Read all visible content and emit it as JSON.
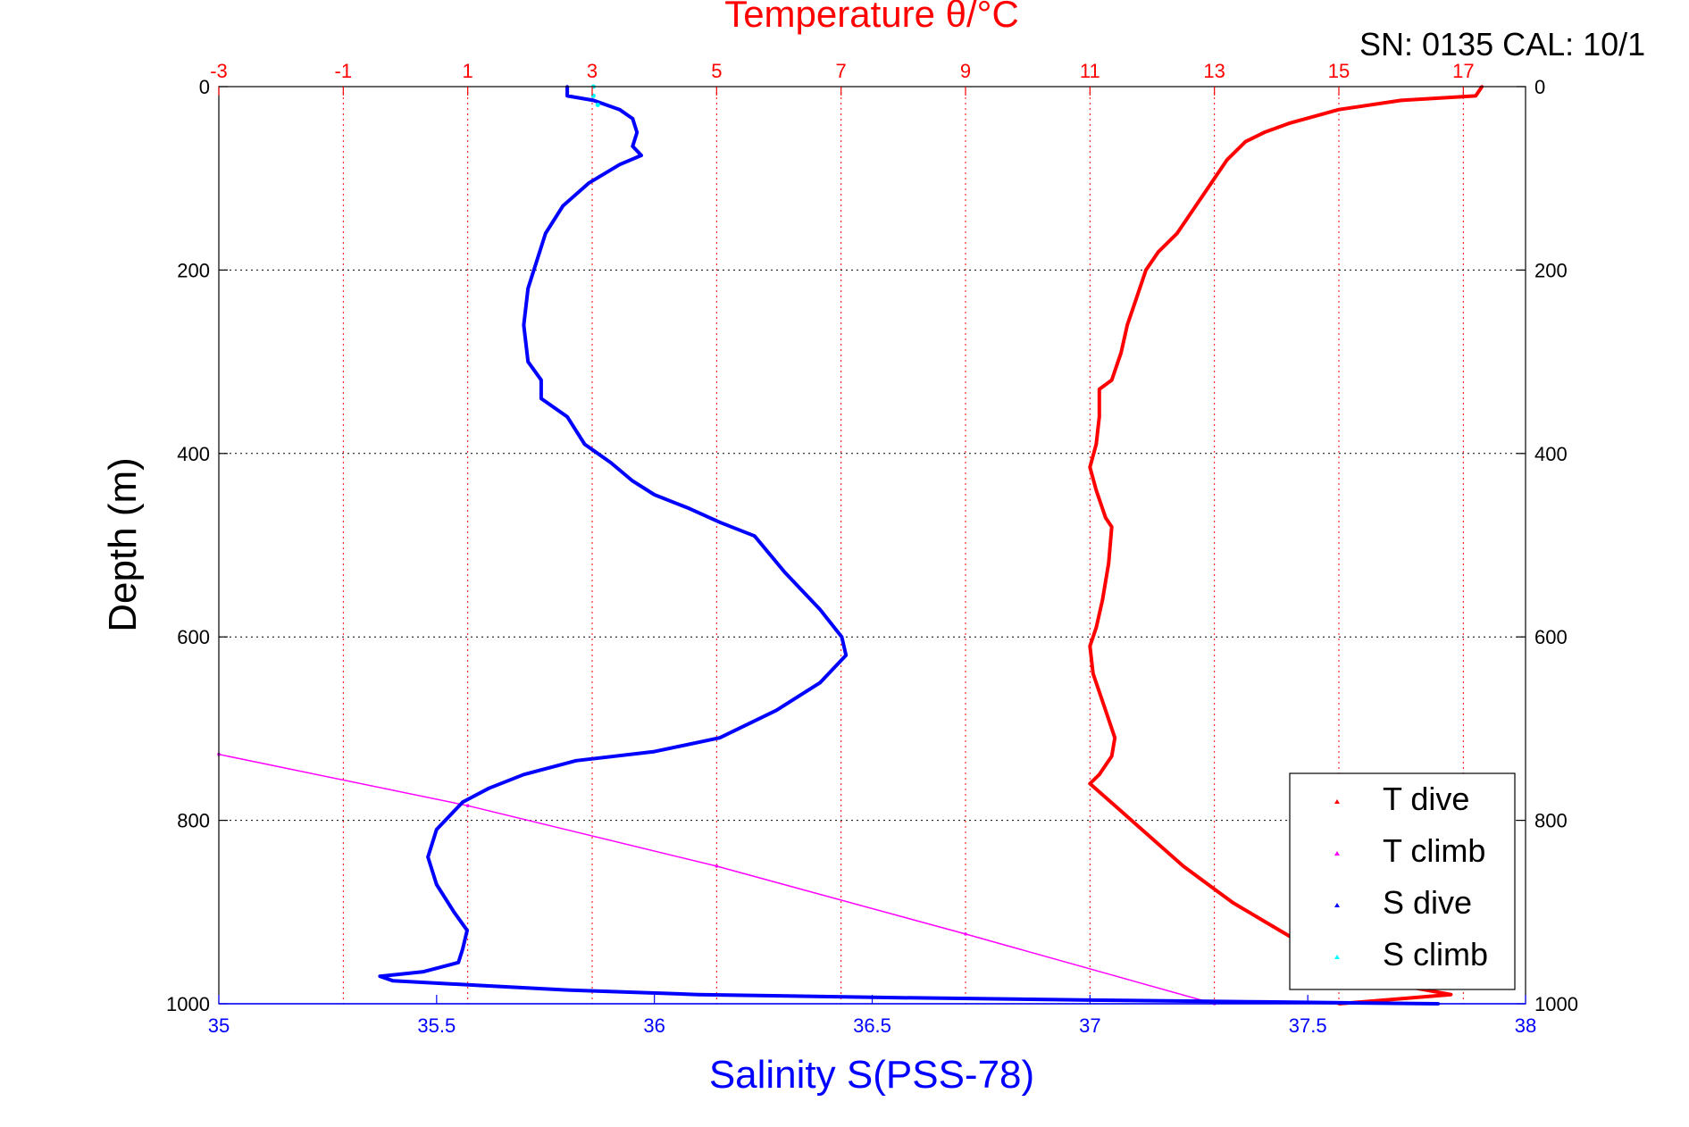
{
  "chart_data": {
    "type": "scatter",
    "title": "Temperature θ/°C",
    "annotation": "SN: 0135  CAL: 10/1",
    "ylabel": "Depth (m)",
    "xlabel": "Salinity S(PSS-78)",
    "y_axis": {
      "range": [
        0,
        1000
      ],
      "inverted": true,
      "ticks": [
        "0",
        "200",
        "400",
        "600",
        "800",
        "1000"
      ],
      "tick_values": [
        0,
        200,
        400,
        600,
        800,
        1000
      ]
    },
    "x_bottom": {
      "label": "Salinity S(PSS-78)",
      "range": [
        35,
        38
      ],
      "ticks": [
        "35",
        "35.5",
        "36",
        "36.5",
        "37",
        "37.5",
        "38"
      ],
      "tick_values": [
        35,
        35.5,
        36,
        36.5,
        37,
        37.5,
        38
      ],
      "color": "#0000ff"
    },
    "x_top": {
      "label": "Temperature θ/°C",
      "range": [
        -3,
        18
      ],
      "ticks": [
        "-3",
        "-1",
        "1",
        "3",
        "5",
        "7",
        "9",
        "11",
        "13",
        "15",
        "17"
      ],
      "tick_values": [
        -3,
        -1,
        1,
        3,
        5,
        7,
        9,
        11,
        13,
        15,
        17
      ],
      "color": "#ff0000"
    },
    "grid": true,
    "legend": {
      "placement": "bottom-right",
      "entries": [
        "T dive",
        "T climb",
        "S dive",
        "S climb"
      ]
    },
    "series": [
      {
        "name": "T dive",
        "color": "#ff0000",
        "axis": "top",
        "points": [
          [
            17.3,
            0
          ],
          [
            17.2,
            10
          ],
          [
            16.0,
            15
          ],
          [
            15.0,
            25
          ],
          [
            14.2,
            40
          ],
          [
            13.8,
            50
          ],
          [
            13.5,
            60
          ],
          [
            13.2,
            80
          ],
          [
            13.0,
            100
          ],
          [
            12.7,
            130
          ],
          [
            12.4,
            160
          ],
          [
            12.1,
            180
          ],
          [
            11.9,
            200
          ],
          [
            11.75,
            230
          ],
          [
            11.6,
            260
          ],
          [
            11.5,
            290
          ],
          [
            11.35,
            320
          ],
          [
            11.15,
            330
          ],
          [
            11.15,
            360
          ],
          [
            11.1,
            390
          ],
          [
            11.0,
            415
          ],
          [
            11.1,
            440
          ],
          [
            11.25,
            470
          ],
          [
            11.35,
            480
          ],
          [
            11.3,
            520
          ],
          [
            11.2,
            560
          ],
          [
            11.1,
            590
          ],
          [
            11.0,
            610
          ],
          [
            11.05,
            640
          ],
          [
            11.25,
            680
          ],
          [
            11.4,
            710
          ],
          [
            11.35,
            730
          ],
          [
            11.15,
            750
          ],
          [
            11.0,
            760
          ],
          [
            11.5,
            790
          ],
          [
            12.0,
            820
          ],
          [
            12.5,
            850
          ],
          [
            12.9,
            870
          ],
          [
            13.3,
            890
          ],
          [
            13.8,
            910
          ],
          [
            14.3,
            930
          ],
          [
            14.8,
            945
          ],
          [
            15.2,
            960
          ],
          [
            16.0,
            980
          ],
          [
            16.8,
            990
          ],
          [
            15.0,
            1000
          ]
        ]
      },
      {
        "name": "T climb",
        "color": "#ff00ff",
        "axis": "top",
        "points": [
          [
            -3,
            728
          ],
          [
            1,
            784
          ],
          [
            5,
            850
          ],
          [
            9,
            924
          ],
          [
            13,
            1000
          ]
        ]
      },
      {
        "name": "S dive",
        "color": "#0000ff",
        "axis": "bottom",
        "points": [
          [
            35.8,
            0
          ],
          [
            35.8,
            10
          ],
          [
            35.86,
            15
          ],
          [
            35.92,
            25
          ],
          [
            35.95,
            35
          ],
          [
            35.96,
            50
          ],
          [
            35.95,
            65
          ],
          [
            35.97,
            75
          ],
          [
            35.92,
            85
          ],
          [
            35.85,
            105
          ],
          [
            35.79,
            130
          ],
          [
            35.75,
            160
          ],
          [
            35.73,
            190
          ],
          [
            35.71,
            220
          ],
          [
            35.7,
            260
          ],
          [
            35.71,
            300
          ],
          [
            35.74,
            320
          ],
          [
            35.74,
            340
          ],
          [
            35.8,
            360
          ],
          [
            35.84,
            390
          ],
          [
            35.9,
            410
          ],
          [
            35.95,
            430
          ],
          [
            36.0,
            445
          ],
          [
            36.08,
            460
          ],
          [
            36.15,
            475
          ],
          [
            36.23,
            490
          ],
          [
            36.3,
            530
          ],
          [
            36.38,
            570
          ],
          [
            36.43,
            600
          ],
          [
            36.44,
            620
          ],
          [
            36.38,
            650
          ],
          [
            36.28,
            680
          ],
          [
            36.15,
            710
          ],
          [
            36.0,
            725
          ],
          [
            35.82,
            735
          ],
          [
            35.7,
            750
          ],
          [
            35.62,
            765
          ],
          [
            35.56,
            780
          ],
          [
            35.5,
            810
          ],
          [
            35.48,
            840
          ],
          [
            35.5,
            870
          ],
          [
            35.54,
            900
          ],
          [
            35.57,
            920
          ],
          [
            35.56,
            940
          ],
          [
            35.55,
            955
          ],
          [
            35.47,
            965
          ],
          [
            35.37,
            970
          ],
          [
            35.4,
            975
          ],
          [
            35.6,
            980
          ],
          [
            35.8,
            985
          ],
          [
            36.1,
            990
          ],
          [
            36.5,
            993
          ],
          [
            37.0,
            996
          ],
          [
            37.4,
            998
          ],
          [
            37.8,
            1000
          ]
        ]
      },
      {
        "name": "S climb",
        "color": "#00ffff",
        "axis": "bottom",
        "points": [
          [
            35.86,
            0
          ],
          [
            35.86,
            10
          ],
          [
            35.87,
            20
          ]
        ]
      }
    ]
  }
}
